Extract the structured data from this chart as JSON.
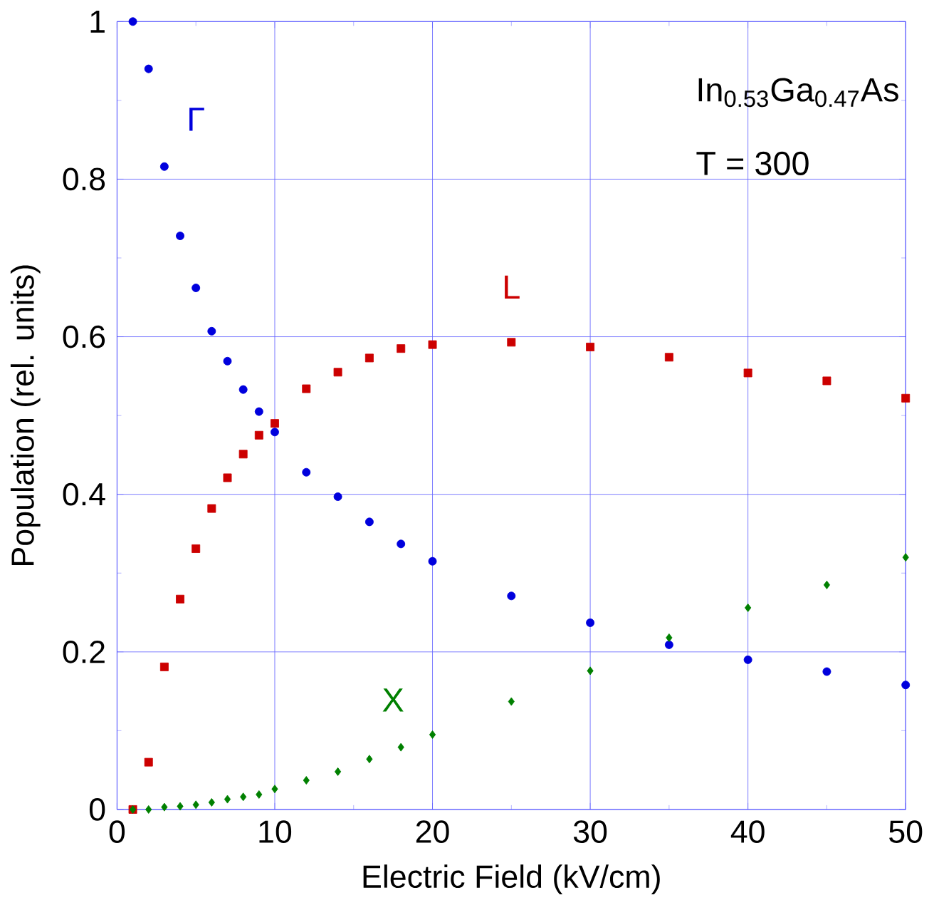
{
  "chart_data": {
    "type": "scatter",
    "xlabel": "Electric Field (kV/cm)",
    "ylabel": "Population (rel. units)",
    "x": [
      1,
      2,
      3,
      4,
      5,
      6,
      7,
      8,
      9,
      10,
      12,
      14,
      16,
      18,
      20,
      25,
      30,
      35,
      40,
      45,
      50
    ],
    "series": [
      {
        "name": "Γ",
        "color": "#0000dd",
        "marker": "circle",
        "values": [
          1.0,
          0.94,
          0.816,
          0.728,
          0.662,
          0.607,
          0.569,
          0.533,
          0.505,
          0.479,
          0.428,
          0.397,
          0.365,
          0.337,
          0.315,
          0.271,
          0.237,
          0.209,
          0.19,
          0.175,
          0.158
        ]
      },
      {
        "name": "L",
        "color": "#cc0000",
        "marker": "square",
        "values": [
          0.0,
          0.06,
          0.181,
          0.267,
          0.331,
          0.382,
          0.421,
          0.451,
          0.475,
          0.49,
          0.534,
          0.555,
          0.573,
          0.585,
          0.59,
          0.593,
          0.587,
          0.574,
          0.554,
          0.544,
          0.522
        ]
      },
      {
        "name": "X",
        "color": "#008000",
        "marker": "diamond",
        "values": [
          0.0,
          0.0,
          0.003,
          0.004,
          0.006,
          0.009,
          0.013,
          0.016,
          0.019,
          0.026,
          0.037,
          0.048,
          0.064,
          0.079,
          0.095,
          0.137,
          0.176,
          0.218,
          0.256,
          0.285,
          0.32
        ]
      }
    ],
    "annotations": [
      "In$_{0.53}$Ga$_{0.47}$As",
      "T = 300"
    ],
    "xlim": [
      0,
      50
    ],
    "ylim": [
      0,
      1
    ],
    "xticks": [
      0,
      10,
      20,
      30,
      40,
      50
    ],
    "yticks": [
      0,
      0.2,
      0.4,
      0.6,
      0.8,
      1
    ],
    "grid": true
  }
}
